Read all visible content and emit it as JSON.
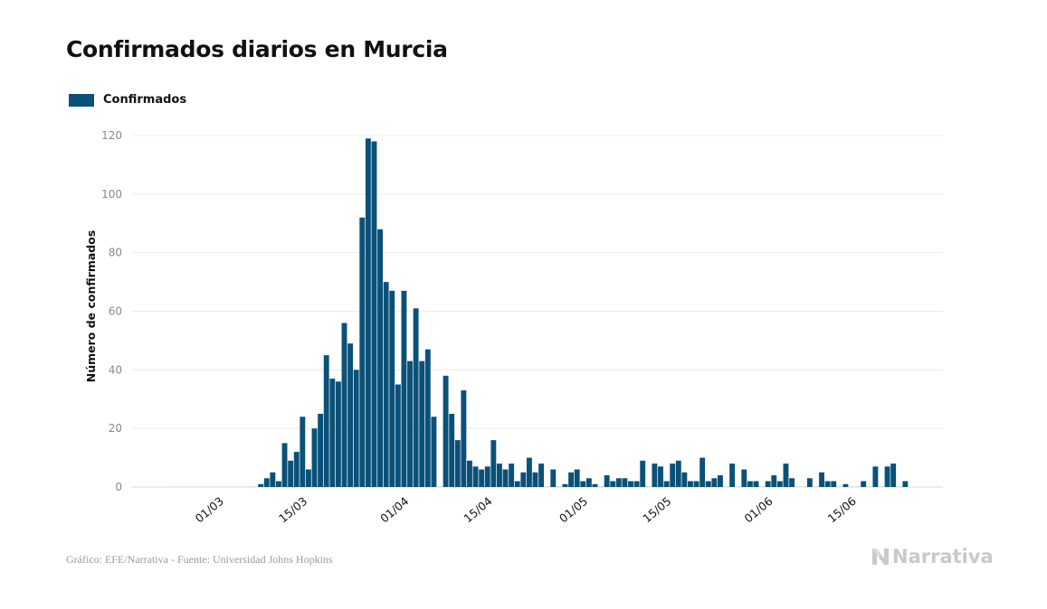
{
  "title": "Confirmados diarios en Murcia",
  "legend": {
    "label": "Confirmados",
    "color": "#0a5179"
  },
  "footer": {
    "source": "Gráfico: EFE/Narrativa - Fuente: Universidad Johns Hopkins",
    "brand": "Narrativa",
    "brand_icon": "narrativa-logo-icon"
  },
  "chart_data": {
    "type": "bar",
    "title": "Confirmados diarios en Murcia",
    "ylabel": "Número de confirmados",
    "xlabel": "",
    "ylim": [
      0,
      125
    ],
    "yticks": [
      0,
      20,
      40,
      60,
      80,
      100,
      120
    ],
    "grid": true,
    "legend_position": "top-left",
    "bar_color": "#0a5179",
    "xticks": [
      {
        "label": "01/03",
        "date": "2020-03-01"
      },
      {
        "label": "15/03",
        "date": "2020-03-15"
      },
      {
        "label": "01/04",
        "date": "2020-04-01"
      },
      {
        "label": "15/04",
        "date": "2020-04-15"
      },
      {
        "label": "01/05",
        "date": "2020-05-01"
      },
      {
        "label": "15/05",
        "date": "2020-05-15"
      },
      {
        "label": "01/06",
        "date": "2020-06-01"
      },
      {
        "label": "15/06",
        "date": "2020-06-15"
      }
    ],
    "series": [
      {
        "name": "Confirmados",
        "dates": [
          "2020-02-22",
          "2020-02-23",
          "2020-02-24",
          "2020-02-25",
          "2020-02-26",
          "2020-02-27",
          "2020-02-28",
          "2020-02-29",
          "2020-03-01",
          "2020-03-02",
          "2020-03-03",
          "2020-03-04",
          "2020-03-05",
          "2020-03-06",
          "2020-03-07",
          "2020-03-08",
          "2020-03-09",
          "2020-03-10",
          "2020-03-11",
          "2020-03-12",
          "2020-03-13",
          "2020-03-14",
          "2020-03-15",
          "2020-03-16",
          "2020-03-17",
          "2020-03-18",
          "2020-03-19",
          "2020-03-20",
          "2020-03-21",
          "2020-03-22",
          "2020-03-23",
          "2020-03-24",
          "2020-03-25",
          "2020-03-26",
          "2020-03-27",
          "2020-03-28",
          "2020-03-29",
          "2020-03-30",
          "2020-03-31",
          "2020-04-01",
          "2020-04-02",
          "2020-04-03",
          "2020-04-04",
          "2020-04-05",
          "2020-04-06",
          "2020-04-07",
          "2020-04-08",
          "2020-04-09",
          "2020-04-10",
          "2020-04-11",
          "2020-04-12",
          "2020-04-13",
          "2020-04-14",
          "2020-04-15",
          "2020-04-16",
          "2020-04-17",
          "2020-04-18",
          "2020-04-19",
          "2020-04-20",
          "2020-04-21",
          "2020-04-22",
          "2020-04-23",
          "2020-04-24",
          "2020-04-25",
          "2020-04-26",
          "2020-04-27",
          "2020-04-28",
          "2020-04-29",
          "2020-04-30",
          "2020-05-01",
          "2020-05-02",
          "2020-05-03",
          "2020-05-04",
          "2020-05-05",
          "2020-05-06",
          "2020-05-07",
          "2020-05-08",
          "2020-05-09",
          "2020-05-10",
          "2020-05-11",
          "2020-05-12",
          "2020-05-13",
          "2020-05-14",
          "2020-05-15",
          "2020-05-16",
          "2020-05-17",
          "2020-05-18",
          "2020-05-19",
          "2020-05-20",
          "2020-05-21",
          "2020-05-22",
          "2020-05-23",
          "2020-05-24",
          "2020-05-25",
          "2020-05-26",
          "2020-05-27",
          "2020-05-28",
          "2020-05-29",
          "2020-05-30",
          "2020-05-31",
          "2020-06-01",
          "2020-06-02",
          "2020-06-03",
          "2020-06-04",
          "2020-06-05",
          "2020-06-06",
          "2020-06-07",
          "2020-06-08",
          "2020-06-09",
          "2020-06-10",
          "2020-06-11",
          "2020-06-12",
          "2020-06-13",
          "2020-06-14",
          "2020-06-15",
          "2020-06-16",
          "2020-06-17",
          "2020-06-18",
          "2020-06-19",
          "2020-06-20",
          "2020-06-21",
          "2020-06-22",
          "2020-06-23",
          "2020-06-24"
        ],
        "values": [
          0,
          0,
          0,
          0,
          0,
          0,
          0,
          0,
          0,
          0,
          0,
          0,
          0,
          0,
          0,
          1,
          3,
          5,
          2,
          15,
          9,
          12,
          24,
          6,
          20,
          25,
          45,
          37,
          36,
          56,
          49,
          40,
          92,
          119,
          118,
          88,
          70,
          67,
          35,
          67,
          43,
          61,
          43,
          47,
          24,
          0,
          38,
          25,
          16,
          33,
          9,
          7,
          6,
          7,
          16,
          8,
          6,
          8,
          2,
          5,
          10,
          5,
          8,
          0,
          6,
          0,
          1,
          5,
          6,
          2,
          3,
          1,
          0,
          4,
          2,
          3,
          3,
          2,
          2,
          9,
          0,
          8,
          7,
          2,
          8,
          9,
          5,
          2,
          2,
          10,
          2,
          3,
          4,
          0,
          8,
          0,
          6,
          2,
          2,
          0,
          2,
          4,
          2,
          8,
          3,
          0,
          0,
          3,
          0,
          5,
          2,
          2,
          0,
          1,
          0,
          0,
          2,
          0,
          7,
          0,
          7,
          8,
          0,
          2
        ]
      }
    ]
  }
}
